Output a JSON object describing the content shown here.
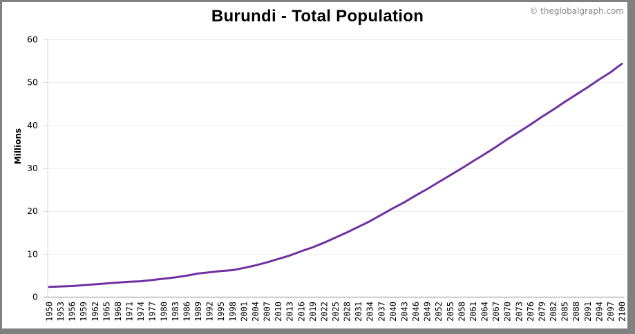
{
  "chart": {
    "title": "Burundi - Total Population",
    "credit": "© theglobalgraph.com",
    "ylabel": "Millions",
    "line_color": "#7030a0"
  },
  "chart_data": {
    "type": "line",
    "title": "Burundi - Total Population",
    "xlabel": "",
    "ylabel": "Millions",
    "ylim": [
      0,
      60
    ],
    "yticks": [
      0,
      10,
      20,
      30,
      40,
      50,
      60
    ],
    "grid": true,
    "legend": "none",
    "x": [
      1950,
      1953,
      1956,
      1959,
      1962,
      1965,
      1968,
      1971,
      1974,
      1977,
      1980,
      1983,
      1986,
      1989,
      1992,
      1995,
      1998,
      2001,
      2004,
      2007,
      2010,
      2013,
      2016,
      2019,
      2022,
      2025,
      2028,
      2031,
      2034,
      2037,
      2040,
      2043,
      2046,
      2049,
      2052,
      2055,
      2058,
      2061,
      2064,
      2067,
      2070,
      2073,
      2076,
      2079,
      2082,
      2085,
      2088,
      2091,
      2094,
      2097,
      2100
    ],
    "series": [
      {
        "name": "Total Population (Millions)",
        "color": "#7030a0",
        "values": [
          2.3,
          2.4,
          2.5,
          2.7,
          2.9,
          3.1,
          3.3,
          3.5,
          3.6,
          3.9,
          4.2,
          4.5,
          4.9,
          5.4,
          5.7,
          6.0,
          6.2,
          6.7,
          7.3,
          8.0,
          8.8,
          9.6,
          10.6,
          11.5,
          12.6,
          13.8,
          15.0,
          16.3,
          17.6,
          19.1,
          20.6,
          22.0,
          23.6,
          25.1,
          26.7,
          28.3,
          29.9,
          31.6,
          33.2,
          34.9,
          36.7,
          38.4,
          40.1,
          41.9,
          43.6,
          45.4,
          47.1,
          48.8,
          50.6,
          52.3,
          54.3
        ]
      }
    ]
  }
}
